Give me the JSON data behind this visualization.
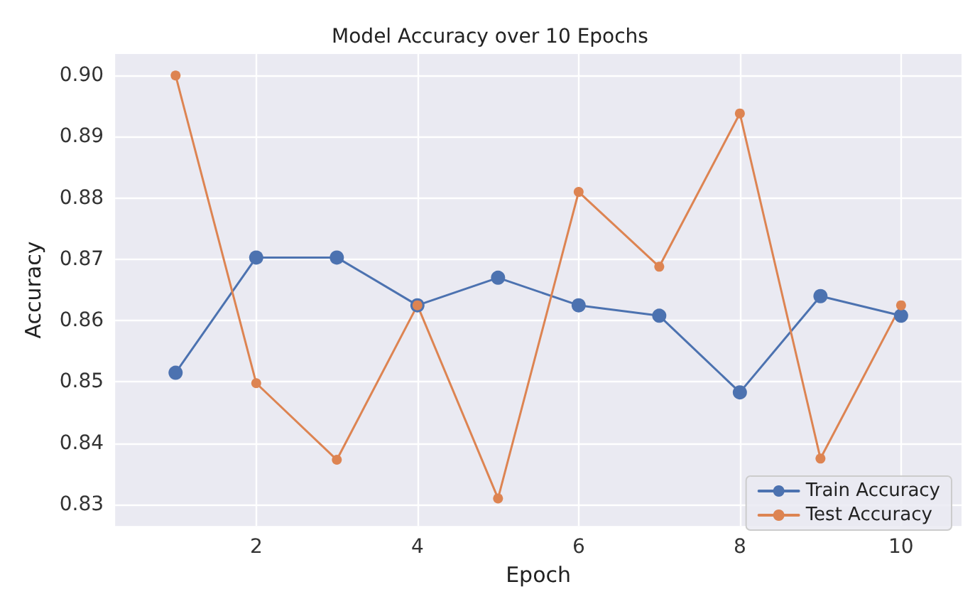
{
  "chart_data": {
    "type": "line",
    "title": "Model Accuracy over 10 Epochs",
    "xlabel": "Epoch",
    "ylabel": "Accuracy",
    "x": [
      1,
      2,
      3,
      4,
      5,
      6,
      7,
      8,
      9,
      10
    ],
    "series": [
      {
        "name": "Train Accuracy",
        "color": "#4c72b0",
        "values": [
          0.8515,
          0.8703,
          0.8703,
          0.8625,
          0.867,
          0.8625,
          0.8608,
          0.8483,
          0.864,
          0.8608
        ]
      },
      {
        "name": "Test Accuracy",
        "color": "#dd8452",
        "values": [
          0.9,
          0.8498,
          0.8373,
          0.8625,
          0.831,
          0.881,
          0.8688,
          0.8938,
          0.8375,
          0.8625
        ]
      }
    ],
    "xlim": [
      0.25,
      10.75
    ],
    "xticks": [
      2,
      4,
      6,
      8,
      10
    ],
    "ylim": [
      0.8265,
      0.9035
    ],
    "yticks": [
      {
        "value": 0.83,
        "label": "0.83"
      },
      {
        "value": 0.84,
        "label": "0.84"
      },
      {
        "value": 0.85,
        "label": "0.85"
      },
      {
        "value": 0.86,
        "label": "0.86"
      },
      {
        "value": 0.87,
        "label": "0.87"
      },
      {
        "value": 0.88,
        "label": "0.88"
      },
      {
        "value": 0.89,
        "label": "0.89"
      },
      {
        "value": 0.9,
        "label": "0.90"
      }
    ],
    "grid": true,
    "legend": "bottom right",
    "marker": "circle",
    "line_style": "solid"
  }
}
